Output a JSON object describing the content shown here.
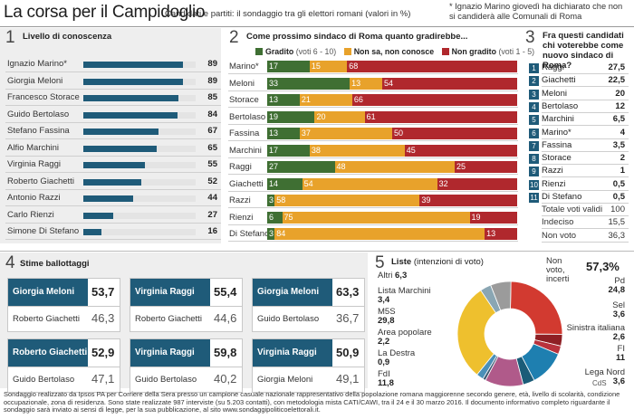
{
  "header": {
    "title": "La corsa per il Campidoglio",
    "subtitle": "Candidati e partiti: il sondaggio tra gli elettori romani (valori in %)",
    "note": "* Ignazio Marino giovedì ha dichiarato che non si candiderà alle Comunali di Roma"
  },
  "section1": {
    "num": "1",
    "title": "Livello di conoscenza",
    "rows": [
      {
        "name": "Ignazio Marino*",
        "value": "89"
      },
      {
        "name": "Giorgia Meloni",
        "value": "89"
      },
      {
        "name": "Francesco Storace",
        "value": "85"
      },
      {
        "name": "Guido Bertolaso",
        "value": "84"
      },
      {
        "name": "Stefano Fassina",
        "value": "67"
      },
      {
        "name": "Alfio Marchini",
        "value": "65"
      },
      {
        "name": "Virginia Raggi",
        "value": "55"
      },
      {
        "name": "Roberto Giachetti",
        "value": "52"
      },
      {
        "name": "Antonio Razzi",
        "value": "44"
      },
      {
        "name": "Carlo Rienzi",
        "value": "27"
      },
      {
        "name": "Simone Di Stefano",
        "value": "16"
      }
    ]
  },
  "section2": {
    "num": "2",
    "title": "Come prossimo sindaco di Roma quanto gradirebbe...",
    "legend": [
      {
        "label": "Gradito",
        "note": "(voti 6 - 10)",
        "color": "#3f6f33"
      },
      {
        "label": "Non sa, non conosce",
        "note": "",
        "color": "#e8a22b"
      },
      {
        "label": "Non gradito",
        "note": "(voti 1 - 5)",
        "color": "#b0282d"
      }
    ],
    "rows": [
      {
        "name": "Marino*",
        "g": "17",
        "o": "15",
        "r": "68"
      },
      {
        "name": "Meloni",
        "g": "33",
        "o": "13",
        "r": "54"
      },
      {
        "name": "Storace",
        "g": "13",
        "o": "21",
        "r": "66"
      },
      {
        "name": "Bertolaso",
        "g": "19",
        "o": "20",
        "r": "61"
      },
      {
        "name": "Fassina",
        "g": "13",
        "o": "37",
        "r": "50"
      },
      {
        "name": "Marchini",
        "g": "17",
        "o": "38",
        "r": "45"
      },
      {
        "name": "Raggi",
        "g": "27",
        "o": "48",
        "r": "25"
      },
      {
        "name": "Giachetti",
        "g": "14",
        "o": "54",
        "r": "32"
      },
      {
        "name": "Razzi",
        "g": "3",
        "o": "58",
        "r": "39"
      },
      {
        "name": "Rienzi",
        "g": "6",
        "o": "75",
        "r": "19"
      },
      {
        "name": "Di Stefano",
        "g": "3",
        "o": "84",
        "r": "13"
      }
    ]
  },
  "section3": {
    "num": "3",
    "title": "Fra questi candidati chi voterebbe come nuovo sindaco di Roma?",
    "rows": [
      {
        "n": "1",
        "name": "Raggi",
        "value": "27,5"
      },
      {
        "n": "2",
        "name": "Giachetti",
        "value": "22,5"
      },
      {
        "n": "3",
        "name": "Meloni",
        "value": "20"
      },
      {
        "n": "4",
        "name": "Bertolaso",
        "value": "12"
      },
      {
        "n": "5",
        "name": "Marchini",
        "value": "6,5"
      },
      {
        "n": "6",
        "name": "Marino*",
        "value": "4"
      },
      {
        "n": "7",
        "name": "Fassina",
        "value": "3,5"
      },
      {
        "n": "8",
        "name": "Storace",
        "value": "2"
      },
      {
        "n": "9",
        "name": "Razzi",
        "value": "1"
      },
      {
        "n": "10",
        "name": "Rienzi",
        "value": "0,5"
      },
      {
        "n": "11",
        "name": "Di Stefano",
        "value": "0,5"
      }
    ],
    "extra": [
      {
        "name": "Totale voti validi",
        "value": "100"
      },
      {
        "name": "Indeciso",
        "value": "15,5"
      },
      {
        "name": "Non voto",
        "value": "36,3"
      }
    ]
  },
  "section4": {
    "num": "4",
    "title": "Stime ballottaggi",
    "pairs": [
      {
        "a": "Giorgia Meloni",
        "av": "53,7",
        "b": "Roberto Giachetti",
        "bv": "46,3"
      },
      {
        "a": "Virginia Raggi",
        "av": "55,4",
        "b": "Roberto Giachetti",
        "bv": "44,6"
      },
      {
        "a": "Giorgia Meloni",
        "av": "63,3",
        "b": "Guido Bertolaso",
        "bv": "36,7"
      },
      {
        "a": "Roberto Giachetti",
        "av": "52,9",
        "b": "Guido Bertolaso",
        "bv": "47,1"
      },
      {
        "a": "Virginia Raggi",
        "av": "59,8",
        "b": "Guido Bertolaso",
        "bv": "40,2"
      },
      {
        "a": "Virginia Raggi",
        "av": "50,9",
        "b": "Giorgia Meloni",
        "bv": "49,1"
      }
    ]
  },
  "section5": {
    "num": "5",
    "title": "Liste",
    "title_note": "(intenzioni di voto)",
    "nonvoto_label": "Non voto, incerti",
    "nonvoto_value": "57,3%",
    "lists": [
      {
        "name": "Pd",
        "value": "24,8",
        "color": "#d23a30"
      },
      {
        "name": "Sel",
        "value": "3,6",
        "color": "#8e1f24"
      },
      {
        "name": "Sinistra italiana",
        "value": "2,6",
        "color": "#b8323c"
      },
      {
        "name": "FI",
        "value": "11",
        "color": "#1e7fb0"
      },
      {
        "name": "Lega Nord",
        "value": "3,6",
        "color": "#1b5c78"
      },
      {
        "name": "FdI",
        "value": "11,8",
        "color": "#b05a8a"
      },
      {
        "name": "La Destra",
        "value": "0,9",
        "color": "#3d5a73"
      },
      {
        "name": "Area popolare",
        "value": "2,2",
        "color": "#4a90b8"
      },
      {
        "name": "M5S",
        "value": "29,8",
        "color": "#eec02e"
      },
      {
        "name": "Lista Marchini",
        "value": "3,4",
        "color": "#8aa6b3"
      },
      {
        "name": "Altri",
        "value": "6,3",
        "color": "#9b9b9b"
      }
    ]
  },
  "footer": {
    "text": "Sondaggio realizzato da Ipsos PA per Corriere della Sera presso un campione casuale nazionale rappresentativo della popolazione romana maggiorenne secondo genere, età, livello di scolarità, condizione occupazionale, zona di residenza. Sono state realizzate 987 interviste (su 5.203 contatti), con metodologia mista CATI/CAWI, tra il 24 e il 30 marzo 2016. Il documento informativo completo riguardante il sondaggio sarà inviato ai sensi di legge, per la sua pubblicazione, al sito www.sondaggipoliticoelettorali.it.",
    "credit": "CdS"
  },
  "chart_data": [
    {
      "type": "bar",
      "title": "Livello di conoscenza",
      "categories": [
        "Ignazio Marino*",
        "Giorgia Meloni",
        "Francesco Storace",
        "Guido Bertolaso",
        "Stefano Fassina",
        "Alfio Marchini",
        "Virginia Raggi",
        "Roberto Giachetti",
        "Antonio Razzi",
        "Carlo Rienzi",
        "Simone Di Stefano"
      ],
      "values": [
        89,
        89,
        85,
        84,
        67,
        65,
        55,
        52,
        44,
        27,
        16
      ],
      "ylim": [
        0,
        100
      ]
    },
    {
      "type": "bar",
      "title": "Come prossimo sindaco di Roma quanto gradirebbe...",
      "stacked": true,
      "categories": [
        "Marino*",
        "Meloni",
        "Storace",
        "Bertolaso",
        "Fassina",
        "Marchini",
        "Raggi",
        "Giachetti",
        "Razzi",
        "Rienzi",
        "Di Stefano"
      ],
      "series": [
        {
          "name": "Gradito (voti 6 - 10)",
          "values": [
            17,
            33,
            13,
            19,
            13,
            17,
            27,
            14,
            3,
            6,
            3
          ]
        },
        {
          "name": "Non sa, non conosce",
          "values": [
            15,
            13,
            21,
            20,
            37,
            38,
            48,
            54,
            58,
            75,
            84
          ]
        },
        {
          "name": "Non gradito (voti 1 - 5)",
          "values": [
            68,
            54,
            66,
            61,
            50,
            45,
            25,
            32,
            39,
            19,
            13
          ]
        }
      ]
    },
    {
      "type": "pie",
      "title": "Liste (intenzioni di voto)",
      "categories": [
        "Pd",
        "Sel",
        "Sinistra italiana",
        "FI",
        "Lega Nord",
        "FdI",
        "La Destra",
        "Area popolare",
        "M5S",
        "Lista Marchini",
        "Altri"
      ],
      "values": [
        24.8,
        3.6,
        2.6,
        11,
        3.6,
        11.8,
        0.9,
        2.2,
        29.8,
        3.4,
        6.3
      ]
    }
  ]
}
